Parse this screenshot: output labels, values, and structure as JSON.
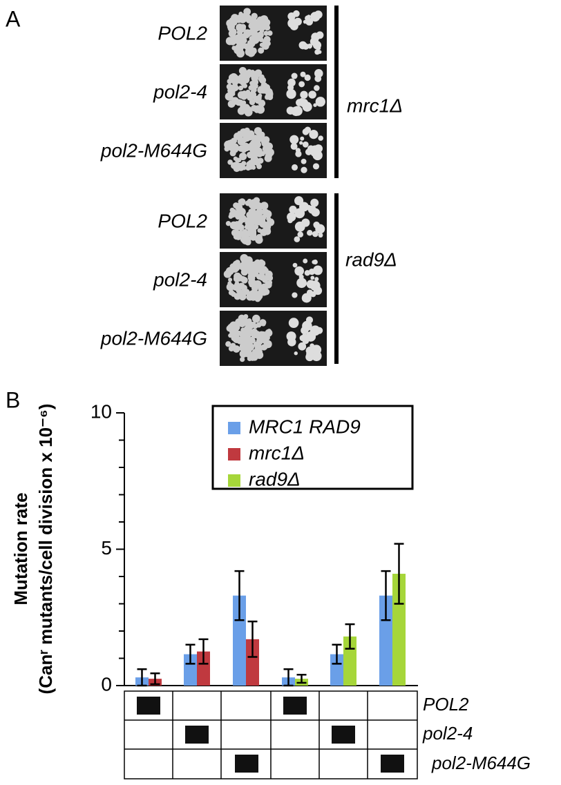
{
  "panel_a": {
    "label": "A",
    "groups": [
      {
        "rows": [
          "POL2",
          "pol2-4",
          "pol2-M644G"
        ],
        "label": "mrc1Δ"
      },
      {
        "rows": [
          "POL2",
          "pol2-4",
          "pol2-M644G"
        ],
        "label": "rad9Δ"
      }
    ]
  },
  "chart_data": {
    "type": "bar",
    "panel_label": "B",
    "y_label": [
      "Mutation rate",
      "(Canʳ mutants/cell division x 10⁻⁶)"
    ],
    "categories": [
      null,
      null,
      null,
      null,
      null,
      null
    ],
    "row_labels": [
      "POL2",
      "pol2-4",
      "pol2-M644G"
    ],
    "series": [
      {
        "name": "MRC1 RAD9",
        "color": "#6a9fe8",
        "values": [
          0.3,
          1.15,
          3.3,
          0.3,
          1.15,
          3.3
        ],
        "errors": [
          0.3,
          0.35,
          0.9,
          0.3,
          0.35,
          0.9
        ]
      },
      {
        "name": "mrc1Δ",
        "color": "#c0393f",
        "values": [
          0.25,
          1.25,
          1.7,
          null,
          null,
          null
        ],
        "errors": [
          0.2,
          0.45,
          0.65,
          null,
          null,
          null
        ]
      },
      {
        "name": "rad9Δ",
        "color": "#a6d63a",
        "values": [
          null,
          null,
          null,
          0.25,
          1.8,
          4.1
        ],
        "errors": [
          null,
          null,
          null,
          0.15,
          0.45,
          1.1
        ]
      }
    ],
    "ylim": [
      0,
      10
    ],
    "yticks": [
      0,
      5,
      10
    ],
    "yminorticks": [
      1,
      2,
      3,
      4,
      6,
      7,
      8,
      9
    ]
  }
}
